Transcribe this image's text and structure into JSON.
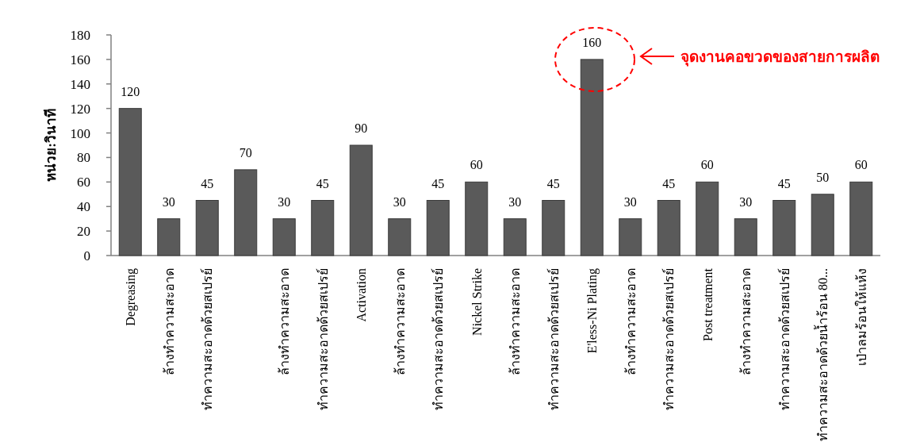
{
  "chart_data": {
    "type": "bar",
    "ylabel": "หน่วย:วินาที",
    "categories": [
      "Degreasing",
      "ล้างทำความสะอาด",
      "ทำความสะอาดด้วยสเปรย์",
      null,
      "ล้างทำความสะอาด",
      "ทำความสะอาดด้วยสเปรย์",
      "Activation",
      "ล้างทำความสะอาด",
      "ทำความสะอาดด้วยสเปรย์",
      "Nickel Strike",
      "ล้างทำความสะอาด",
      "ทำความสะอาดด้วยสเปรย์",
      "E'less-Ni Plating",
      "ล้างทำความสะอาด",
      "ทำความสะอาดด้วยสเปรย์",
      "Post treatment",
      "ล้างทำความสะอาด",
      "ทำความสะอาดด้วยสเปรย์",
      "ทำความสะอาดด้วยน้ำร้อน 80...",
      "เป่าลมร้อนให้แห้ง"
    ],
    "values": [
      120,
      30,
      45,
      70,
      30,
      45,
      90,
      30,
      45,
      60,
      30,
      45,
      160,
      30,
      45,
      60,
      30,
      45,
      50,
      60
    ],
    "color": "#5a5a5a",
    "ylim": [
      0,
      180
    ],
    "yticks": [
      0,
      20,
      40,
      60,
      80,
      100,
      120,
      140,
      160,
      180
    ],
    "data_labels": true,
    "annotations": [
      "จุดงานคอขวดของสายการผลิต"
    ]
  }
}
